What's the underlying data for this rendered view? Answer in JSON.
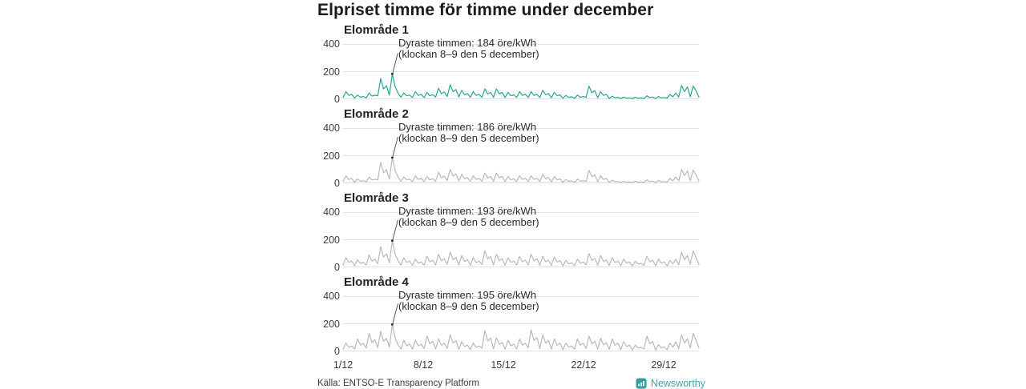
{
  "title": "Elpriset timme för timme under december",
  "source": "Källa: ENTSO-E Transparency Platform",
  "brand": {
    "name": "Newsworthy",
    "color": "#43a5a0",
    "logo_color": "#2f9f9b"
  },
  "colors": {
    "highlight_line": "#2da390",
    "muted_line": "#b9b9bb",
    "grid": "#e2e2e2",
    "annotation_pointer": "#4a4a4a",
    "annotation_dot": "#222222"
  },
  "axis": {
    "y_ticks": [
      400,
      200,
      0
    ],
    "x_ticks": [
      "1/12",
      "8/12",
      "15/12",
      "22/12",
      "29/12"
    ],
    "x_range": [
      "1/12",
      "31/12"
    ],
    "ylim": [
      0,
      400
    ]
  },
  "chart_data": [
    {
      "type": "line",
      "name": "Elområde 1",
      "unit": "öre/kWh",
      "max_value": 184,
      "annotation": {
        "line1": "Dyraste timmen: 184 öre/kWh",
        "line2": "(klockan 8–9 den 5 december)"
      },
      "color": "#2da390",
      "values": [
        12,
        55,
        28,
        36,
        8,
        30,
        15,
        20,
        10,
        45,
        23,
        29,
        25,
        150,
        75,
        98,
        30,
        184,
        90,
        45,
        14,
        45,
        25,
        30,
        12,
        55,
        28,
        36,
        12,
        50,
        25,
        33,
        16,
        80,
        40,
        52,
        20,
        105,
        55,
        70,
        16,
        65,
        33,
        42,
        14,
        55,
        28,
        36,
        14,
        75,
        38,
        49,
        14,
        75,
        40,
        50,
        12,
        50,
        25,
        32,
        12,
        55,
        28,
        36,
        12,
        55,
        28,
        36,
        13,
        65,
        33,
        42,
        11,
        50,
        25,
        32,
        7,
        28,
        14,
        18,
        7,
        30,
        15,
        20,
        14,
        95,
        48,
        62,
        11,
        55,
        28,
        36,
        6,
        22,
        11,
        14,
        5,
        15,
        8,
        10,
        5,
        15,
        8,
        10,
        6,
        25,
        13,
        16,
        6,
        20,
        10,
        13,
        8,
        35,
        18,
        45,
        16,
        100,
        55,
        90,
        18,
        95,
        60,
        15
      ]
    },
    {
      "type": "line",
      "name": "Elområde 2",
      "unit": "öre/kWh",
      "max_value": 186,
      "annotation": {
        "line1": "Dyraste timmen: 186 öre/kWh",
        "line2": "(klockan 8–9 den 5 december)"
      },
      "color": "#b9b9bb",
      "values": [
        12,
        55,
        28,
        36,
        8,
        30,
        15,
        20,
        10,
        45,
        23,
        29,
        25,
        152,
        76,
        99,
        30,
        186,
        92,
        46,
        14,
        45,
        25,
        30,
        12,
        55,
        28,
        36,
        12,
        50,
        25,
        33,
        16,
        80,
        40,
        52,
        20,
        100,
        52,
        68,
        16,
        65,
        33,
        42,
        14,
        55,
        28,
        36,
        14,
        75,
        38,
        49,
        14,
        75,
        40,
        50,
        12,
        50,
        25,
        32,
        12,
        55,
        28,
        36,
        12,
        55,
        28,
        36,
        13,
        65,
        33,
        42,
        11,
        50,
        25,
        32,
        7,
        28,
        14,
        18,
        7,
        30,
        15,
        20,
        14,
        95,
        48,
        62,
        11,
        55,
        28,
        36,
        6,
        22,
        11,
        14,
        5,
        15,
        8,
        10,
        5,
        15,
        8,
        10,
        6,
        25,
        13,
        16,
        6,
        20,
        10,
        13,
        8,
        35,
        18,
        45,
        16,
        100,
        55,
        90,
        18,
        95,
        60,
        15
      ]
    },
    {
      "type": "line",
      "name": "Elområde 3",
      "unit": "öre/kWh",
      "max_value": 193,
      "annotation": {
        "line1": "Dyraste timmen: 193 öre/kWh",
        "line2": "(klockan 8–9 den 5 december)"
      },
      "color": "#b9b9bb",
      "values": [
        15,
        70,
        35,
        46,
        12,
        55,
        28,
        36,
        18,
        90,
        45,
        59,
        25,
        150,
        75,
        98,
        32,
        193,
        96,
        48,
        16,
        70,
        35,
        46,
        14,
        60,
        30,
        39,
        16,
        80,
        40,
        52,
        18,
        95,
        48,
        62,
        22,
        110,
        55,
        72,
        18,
        85,
        43,
        55,
        15,
        70,
        35,
        46,
        20,
        120,
        60,
        78,
        18,
        95,
        48,
        62,
        15,
        70,
        35,
        46,
        16,
        80,
        40,
        52,
        18,
        95,
        48,
        62,
        16,
        80,
        40,
        52,
        15,
        75,
        38,
        49,
        10,
        50,
        25,
        33,
        12,
        60,
        30,
        39,
        18,
        100,
        50,
        65,
        16,
        85,
        43,
        55,
        14,
        70,
        35,
        46,
        12,
        60,
        30,
        39,
        9,
        45,
        23,
        29,
        14,
        80,
        40,
        52,
        11,
        60,
        30,
        39,
        10,
        50,
        25,
        60,
        18,
        110,
        55,
        85,
        22,
        120,
        70,
        20
      ]
    },
    {
      "type": "line",
      "name": "Elområde 4",
      "unit": "öre/kWh",
      "max_value": 195,
      "annotation": {
        "line1": "Dyraste timmen: 195 öre/kWh",
        "line2": "(klockan 8–9 den 5 december)"
      },
      "color": "#b9b9bb",
      "values": [
        14,
        60,
        30,
        39,
        18,
        90,
        45,
        59,
        24,
        130,
        65,
        85,
        26,
        145,
        73,
        94,
        32,
        195,
        98,
        50,
        16,
        80,
        40,
        52,
        16,
        80,
        40,
        52,
        20,
        110,
        55,
        72,
        18,
        90,
        45,
        59,
        22,
        120,
        60,
        78,
        15,
        70,
        35,
        46,
        13,
        60,
        30,
        39,
        24,
        150,
        75,
        98,
        18,
        100,
        50,
        65,
        15,
        80,
        40,
        52,
        17,
        90,
        45,
        59,
        26,
        155,
        78,
        101,
        20,
        120,
        60,
        78,
        17,
        90,
        45,
        59,
        12,
        60,
        30,
        39,
        16,
        90,
        45,
        59,
        20,
        110,
        55,
        72,
        17,
        95,
        48,
        62,
        16,
        90,
        45,
        59,
        13,
        70,
        35,
        46,
        9,
        45,
        23,
        29,
        18,
        110,
        55,
        72,
        10,
        50,
        25,
        33,
        12,
        60,
        30,
        70,
        20,
        120,
        60,
        90,
        24,
        130,
        80,
        25
      ]
    }
  ]
}
